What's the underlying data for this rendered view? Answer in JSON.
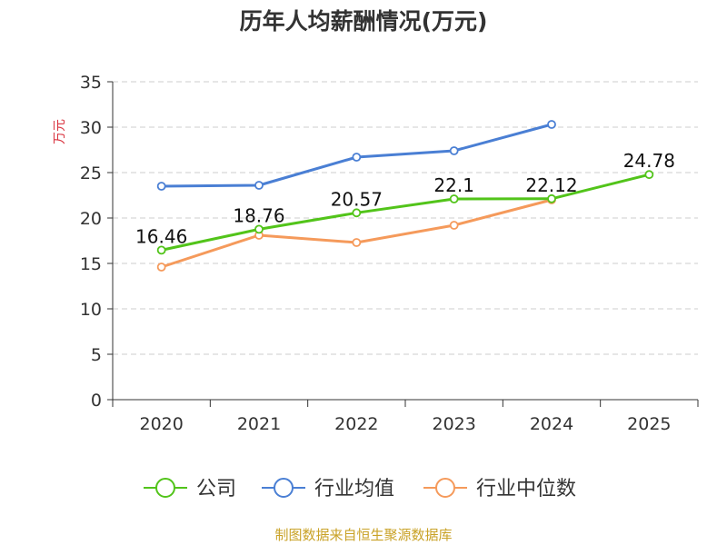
{
  "chart_data": {
    "type": "line",
    "title": "历年人均薪酬情况(万元)",
    "ylabel": "万元",
    "xlabel": "",
    "ylim": [
      0,
      35
    ],
    "yticks": [
      0,
      5,
      10,
      15,
      20,
      25,
      30,
      35
    ],
    "grid": true,
    "legend_position": "bottom",
    "categories": [
      "2020",
      "2021",
      "2022",
      "2023",
      "2024",
      "2025"
    ],
    "series": [
      {
        "name": "公司",
        "color": "#52c41a",
        "values": [
          16.46,
          18.76,
          20.57,
          22.1,
          22.12,
          24.78
        ],
        "show_labels": true
      },
      {
        "name": "行业均值",
        "color": "#4a7fd4",
        "values": [
          23.5,
          23.6,
          26.7,
          27.4,
          30.3,
          null
        ],
        "show_labels": false
      },
      {
        "name": "行业中位数",
        "color": "#f59a5b",
        "values": [
          14.6,
          18.1,
          17.3,
          19.2,
          22.0,
          null
        ],
        "show_labels": false
      }
    ]
  },
  "source_text": "制图数据来自恒生聚源数据库"
}
